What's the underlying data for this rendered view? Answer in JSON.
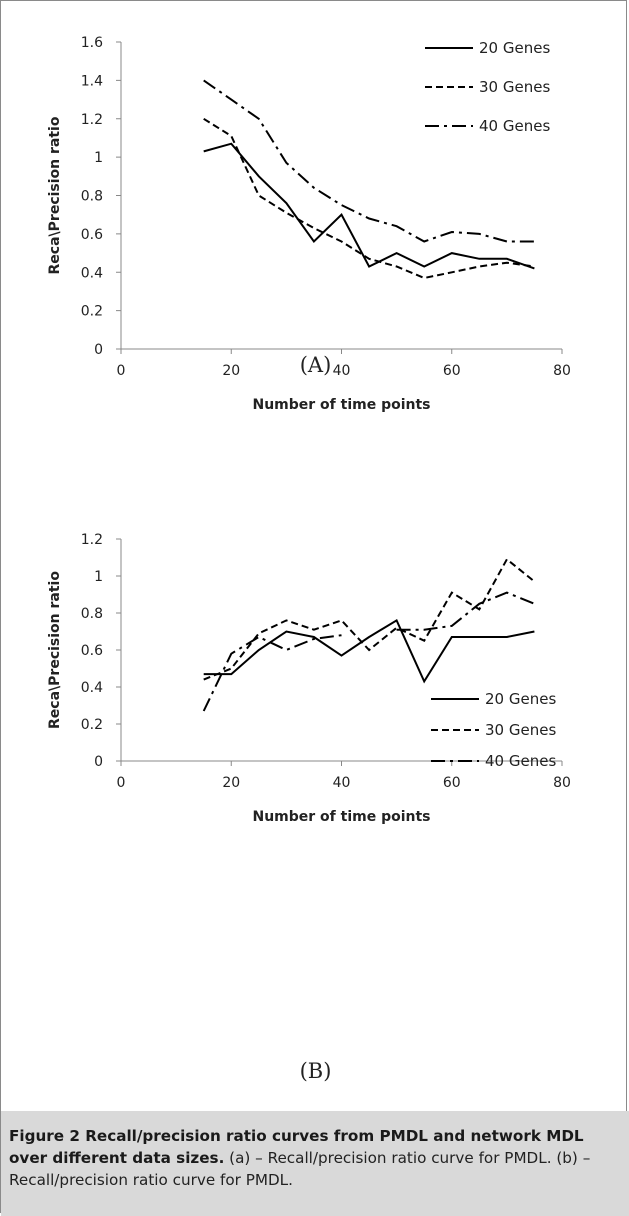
{
  "panels": [
    {
      "label": "(A)"
    },
    {
      "label": "(B)"
    }
  ],
  "caption": {
    "title": "Figure 2 Recall/precision ratio curves from PMDL and network MDL over different data sizes.",
    "body": " (a) – Recall/precision ratio curve for PMDL. (b) – Recall/precision ratio curve for PMDL."
  },
  "colors": {
    "series": "#000000",
    "axis": "#888888",
    "caption_bg": "#d9d9d9"
  },
  "chart_data": [
    {
      "type": "line",
      "xlabel": "Number of time points",
      "ylabel": "Reca\\Precision ratio",
      "xlim": [
        0,
        80
      ],
      "ylim": [
        0,
        1.6
      ],
      "xticks": [
        "0",
        "20",
        "40",
        "60",
        "80"
      ],
      "yticks": [
        "0",
        "0.2",
        "0.4",
        "0.6",
        "0.8",
        "1",
        "1.2",
        "1.4",
        "1.6"
      ],
      "grid": false,
      "legend_position": "top-right",
      "x": [
        15,
        20,
        25,
        30,
        35,
        40,
        45,
        50,
        55,
        60,
        65,
        70,
        75
      ],
      "series": [
        {
          "name": "20 Genes",
          "style": "solid",
          "values": [
            1.03,
            1.07,
            0.9,
            0.76,
            0.56,
            0.7,
            0.43,
            0.5,
            0.43,
            0.5,
            0.47,
            0.47,
            0.42
          ]
        },
        {
          "name": "30 Genes",
          "style": "dashed",
          "values": [
            1.2,
            1.11,
            0.8,
            0.71,
            0.63,
            0.56,
            0.47,
            0.43,
            0.37,
            0.4,
            0.43,
            0.45,
            0.43
          ]
        },
        {
          "name": "40 Genes",
          "style": "dashdot",
          "values": [
            1.4,
            1.3,
            1.2,
            0.97,
            0.84,
            0.75,
            0.68,
            0.64,
            0.56,
            0.61,
            0.6,
            0.56,
            0.56
          ]
        }
      ]
    },
    {
      "type": "line",
      "xlabel": "Number of time points",
      "ylabel": "Reca\\Precision ratio",
      "xlim": [
        0,
        80
      ],
      "ylim": [
        0,
        1.2
      ],
      "xticks": [
        "0",
        "20",
        "40",
        "60",
        "80"
      ],
      "yticks": [
        "0",
        "0.2",
        "0.4",
        "0.6",
        "0.8",
        "1",
        "1.2"
      ],
      "grid": false,
      "legend_position": "bottom-right",
      "x": [
        15,
        20,
        25,
        30,
        35,
        40,
        45,
        50,
        55,
        60,
        65,
        70,
        75
      ],
      "series": [
        {
          "name": "20 Genes",
          "style": "solid",
          "values": [
            0.47,
            0.47,
            0.6,
            0.7,
            0.67,
            0.57,
            0.67,
            0.76,
            0.43,
            0.67,
            0.67,
            0.67,
            0.7
          ]
        },
        {
          "name": "30 Genes",
          "style": "dashed",
          "values": [
            0.44,
            0.5,
            0.69,
            0.76,
            0.71,
            0.76,
            0.6,
            0.72,
            0.65,
            0.91,
            0.82,
            1.09,
            0.97
          ]
        },
        {
          "name": "40 Genes",
          "style": "dashdot",
          "values": [
            0.27,
            0.58,
            0.67,
            0.6,
            0.66,
            0.68,
            null,
            0.71,
            0.71,
            0.73,
            0.85,
            0.91,
            0.85
          ]
        }
      ]
    }
  ]
}
